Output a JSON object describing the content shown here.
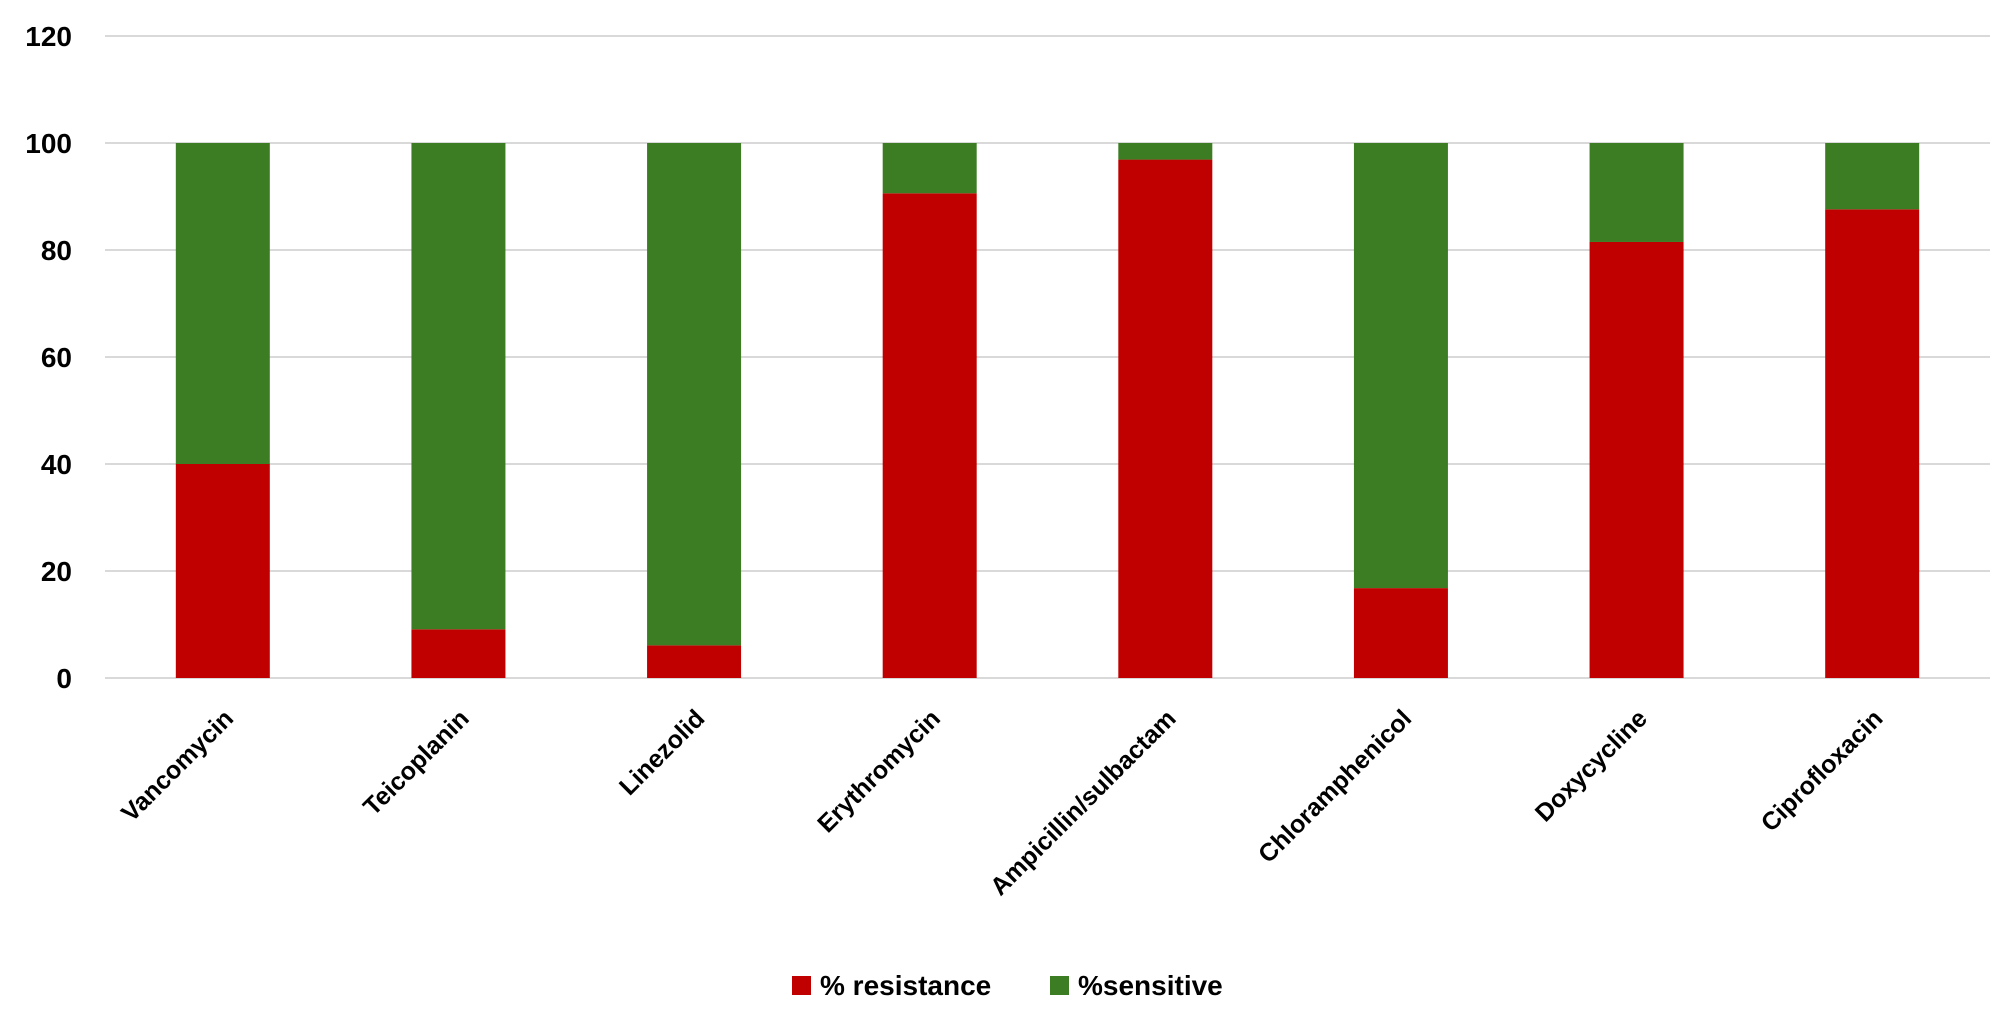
{
  "chart_data": {
    "type": "bar",
    "stacked": true,
    "title": "",
    "xlabel": "",
    "ylabel": "",
    "ylim": [
      0,
      120
    ],
    "yticks": [
      0,
      20,
      40,
      60,
      80,
      100,
      120
    ],
    "grid": true,
    "legend_position": "bottom",
    "categories": [
      "Vancomycin",
      "Teicoplanin",
      "Linezolid",
      "Erythromycin",
      "Ampicillin/sulbactam",
      "Chloramphenicol",
      "Doxycycline",
      "Ciprofloxacin"
    ],
    "series": [
      {
        "name": "% resistance",
        "color": "#c00000",
        "values": [
          40,
          9.1,
          6.1,
          90.6,
          96.9,
          16.8,
          81.5,
          87.6
        ]
      },
      {
        "name": "%sensitive",
        "color": "#3c7d24",
        "values": [
          60,
          90.9,
          93.9,
          9.4,
          3.1,
          83.2,
          18.5,
          12.4
        ]
      }
    ]
  }
}
